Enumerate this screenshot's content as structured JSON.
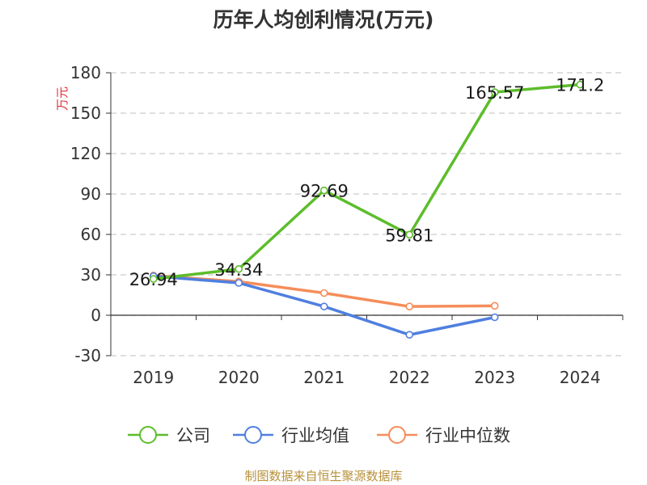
{
  "title": "历年人均创利情况(万元)",
  "source": "制图数据来自恒生聚源数据库",
  "chart_data": {
    "type": "line",
    "title": "历年人均创利情况(万元)",
    "ylabel": "万元",
    "xlabel": "",
    "categories": [
      "2019",
      "2020",
      "2021",
      "2022",
      "2023",
      "2024"
    ],
    "ylim": [
      -30,
      180
    ],
    "yticks": [
      "180",
      "150",
      "120",
      "90",
      "60",
      "30",
      "0",
      "-30"
    ],
    "ytick_values": [
      180,
      150,
      120,
      90,
      60,
      30,
      0,
      -30
    ],
    "grid": true,
    "legend_position": "bottom",
    "series": [
      {
        "name": "公司",
        "color": "#5cbd2b",
        "values": [
          26.94,
          34.34,
          92.69,
          59.81,
          165.57,
          171.2
        ],
        "labels": [
          "26.94",
          "34.34",
          "92.69",
          "59.81",
          "165.57",
          "171.2"
        ]
      },
      {
        "name": "行业均值",
        "color": "#4f7fdf",
        "values": [
          29,
          24,
          6.5,
          -14.5,
          -1.5,
          null
        ],
        "labels": []
      },
      {
        "name": "行业中位数",
        "color": "#f58d5a",
        "values": [
          29.5,
          25,
          16.5,
          6.5,
          7,
          null
        ],
        "labels": []
      }
    ]
  }
}
